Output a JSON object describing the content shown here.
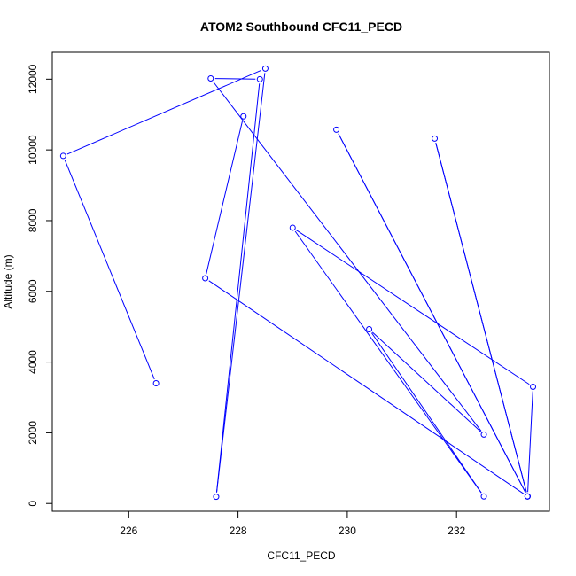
{
  "chart_data": {
    "type": "scatter",
    "title": "ATOM2 Southbound CFC11_PECD",
    "xlabel": "CFC11_PECD",
    "ylabel": "Altitude (m)",
    "xlim": [
      224.6,
      233.7
    ],
    "ylim": [
      -220,
      12760
    ],
    "x_ticks": [
      226,
      228,
      230,
      232
    ],
    "x_tick_labels": [
      "226",
      "228",
      "230",
      "232"
    ],
    "y_ticks": [
      0,
      2000,
      4000,
      6000,
      8000,
      10000,
      12000
    ],
    "y_tick_labels": [
      "0",
      "2000",
      "4000",
      "6000",
      "8000",
      "10000",
      "12000"
    ],
    "grid": false,
    "series": [
      {
        "color": "#0000ff",
        "marker": "open-circle",
        "connect_points": true,
        "points": [
          {
            "x": 226.5,
            "y": 3400
          },
          {
            "x": 224.8,
            "y": 9830
          },
          {
            "x": 228.5,
            "y": 12300
          },
          {
            "x": 227.6,
            "y": 190
          },
          {
            "x": 228.4,
            "y": 12000
          },
          {
            "x": 227.5,
            "y": 12020
          },
          {
            "x": 232.5,
            "y": 1950
          },
          {
            "x": 230.4,
            "y": 4930
          },
          {
            "x": 232.5,
            "y": 200
          },
          {
            "x": 229.0,
            "y": 7800
          },
          {
            "x": 233.4,
            "y": 3300
          },
          {
            "x": 233.3,
            "y": 200
          },
          {
            "x": 231.6,
            "y": 10320
          },
          {
            "x": 233.3,
            "y": 200
          },
          {
            "x": 229.8,
            "y": 10570
          },
          {
            "x": 233.3,
            "y": 200
          },
          {
            "x": 227.4,
            "y": 6370
          },
          {
            "x": 228.1,
            "y": 10950
          }
        ]
      }
    ]
  }
}
